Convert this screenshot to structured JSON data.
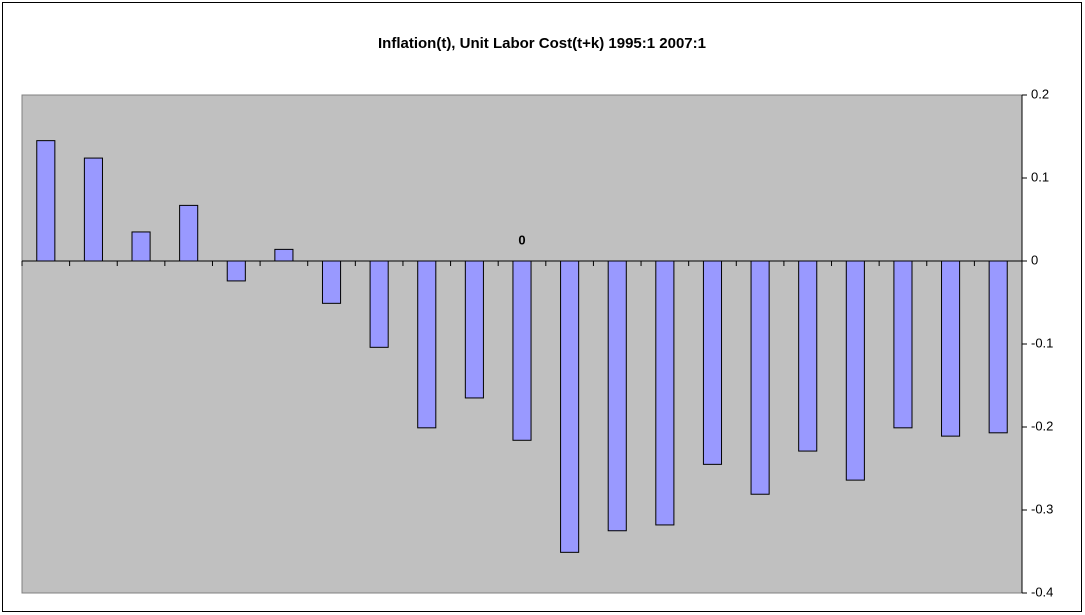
{
  "chart_data": {
    "type": "bar",
    "title": "Inflation(t), Unit Labor Cost(t+k) 1995:1 2007:1",
    "categories": [
      null,
      null,
      null,
      null,
      null,
      null,
      null,
      null,
      null,
      null,
      "0",
      null,
      null,
      null,
      null,
      null,
      null,
      null,
      null,
      null,
      null
    ],
    "values": [
      0.145,
      0.124,
      0.035,
      0.067,
      -0.024,
      0.014,
      -0.051,
      -0.104,
      -0.201,
      -0.165,
      -0.216,
      -0.351,
      -0.325,
      -0.318,
      -0.245,
      -0.281,
      -0.229,
      -0.264,
      -0.201,
      -0.211,
      -0.207
    ],
    "color": "#9999ff",
    "ylim": [
      -0.4,
      0.2
    ],
    "yticks": [
      -0.4,
      -0.3,
      -0.2,
      -0.1,
      0,
      0.1,
      0.2
    ],
    "grid": false
  }
}
